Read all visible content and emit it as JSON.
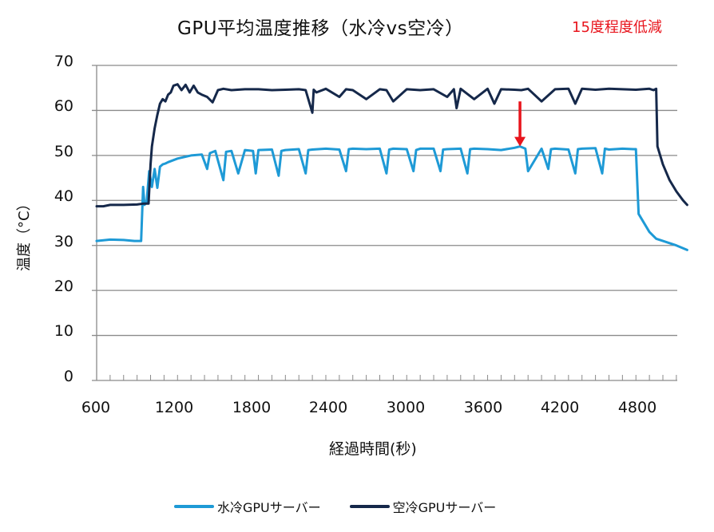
{
  "chart_data": {
    "type": "line",
    "title": "GPU平均温度推移（水冷vs空冷）",
    "annotation": {
      "text": "15度程度低減",
      "color": "#e8141c",
      "arrow": {
        "x": 3740,
        "from_y": 62,
        "to_y": 52
      }
    },
    "xlabel": "経過時間(秒)",
    "ylabel": "温度（°C）",
    "xlim": [
      600,
      5000
    ],
    "ylim": [
      0,
      70
    ],
    "x_ticks": [
      600,
      1200,
      1800,
      2400,
      3000,
      3600,
      4200,
      4800
    ],
    "y_ticks": [
      0,
      10,
      20,
      30,
      40,
      50,
      60,
      70
    ],
    "grid": {
      "horizontal": true,
      "vertical": false
    },
    "legend_position": "bottom",
    "series": [
      {
        "name": "水冷GPUサーバー",
        "color": "#1e9ad6",
        "x": [
          600,
          700,
          800,
          880,
          930,
          945,
          955,
          970,
          990,
          1010,
          1030,
          1050,
          1070,
          1090,
          1110,
          1130,
          1200,
          1300,
          1380,
          1420,
          1440,
          1480,
          1540,
          1560,
          1600,
          1650,
          1700,
          1760,
          1780,
          1800,
          1900,
          1950,
          1970,
          2000,
          2100,
          2150,
          2170,
          2200,
          2300,
          2400,
          2450,
          2470,
          2500,
          2600,
          2700,
          2750,
          2770,
          2800,
          2900,
          2950,
          2970,
          3000,
          3100,
          3150,
          3170,
          3200,
          3300,
          3350,
          3370,
          3400,
          3500,
          3600,
          3700,
          3740,
          3780,
          3800,
          3900,
          3950,
          3970,
          4000,
          4100,
          4150,
          4170,
          4200,
          4300,
          4350,
          4370,
          4400,
          4500,
          4580,
          4600,
          4620,
          4700,
          4750,
          4800,
          4900,
          4980
        ],
        "values": [
          31,
          31.3,
          31.2,
          31,
          31,
          43,
          39,
          39.5,
          46.5,
          43,
          47,
          42.8,
          47.5,
          48,
          48.2,
          48.5,
          49.3,
          50,
          50.2,
          47,
          50.5,
          51,
          44.5,
          50.8,
          51,
          46,
          51.2,
          51,
          46,
          51.2,
          51.3,
          45.5,
          51,
          51.2,
          51.4,
          46,
          51.2,
          51.3,
          51.5,
          51.3,
          46.5,
          51.4,
          51.5,
          51.4,
          51.5,
          46,
          51.3,
          51.5,
          51.4,
          46.5,
          51.2,
          51.5,
          51.5,
          46.5,
          51.3,
          51.4,
          51.5,
          46,
          51.4,
          51.5,
          51.4,
          51.2,
          51.7,
          52,
          51.5,
          46.5,
          51.5,
          47,
          51.4,
          51.5,
          51.3,
          46,
          51.4,
          51.5,
          51.6,
          46,
          51.5,
          51.3,
          51.5,
          51.4,
          51.4,
          37,
          33,
          31.5,
          31,
          30,
          29
        ]
      },
      {
        "name": "空冷GPUサーバー",
        "color": "#15284a",
        "x": [
          600,
          650,
          700,
          800,
          900,
          950,
          985,
          1000,
          1010,
          1030,
          1050,
          1070,
          1090,
          1110,
          1130,
          1150,
          1170,
          1200,
          1230,
          1260,
          1290,
          1320,
          1350,
          1380,
          1420,
          1460,
          1500,
          1540,
          1600,
          1700,
          1800,
          1900,
          2000,
          2100,
          2150,
          2200,
          2210,
          2230,
          2300,
          2400,
          2450,
          2500,
          2600,
          2700,
          2750,
          2800,
          2900,
          3000,
          3100,
          3200,
          3250,
          3270,
          3300,
          3400,
          3500,
          3550,
          3600,
          3700,
          3750,
          3800,
          3900,
          4000,
          4100,
          4150,
          4200,
          4300,
          4400,
          4500,
          4600,
          4700,
          4730,
          4750,
          4760,
          4800,
          4850,
          4900,
          4950,
          4980
        ],
        "values": [
          38.7,
          38.7,
          39,
          39,
          39.1,
          39.3,
          39.3,
          48,
          52,
          56,
          59,
          61.5,
          62.5,
          62,
          63.5,
          64,
          65.5,
          65.8,
          64.5,
          65.7,
          64,
          65.5,
          64,
          63.5,
          63,
          61.8,
          64.5,
          64.8,
          64.5,
          64.7,
          64.7,
          64.5,
          64.6,
          64.7,
          64.5,
          59.5,
          64.6,
          64,
          64.8,
          63,
          64.7,
          64.5,
          62.5,
          64.7,
          64.5,
          62,
          64.7,
          64.5,
          64.7,
          63,
          64.7,
          60.5,
          64.8,
          62.5,
          64.8,
          61.5,
          64.7,
          64.6,
          64.5,
          64.8,
          62,
          64.7,
          64.8,
          61.5,
          64.8,
          64.6,
          64.8,
          64.7,
          64.6,
          64.8,
          64.5,
          64.8,
          52,
          48,
          44.5,
          42,
          40,
          39
        ]
      }
    ]
  },
  "legend": {
    "items": [
      {
        "label": "水冷GPUサーバー",
        "color": "#1e9ad6"
      },
      {
        "label": "空冷GPUサーバー",
        "color": "#15284a"
      }
    ]
  },
  "axes": {
    "y_tick_labels": [
      "70",
      "60",
      "50",
      "40",
      "30",
      "20",
      "10",
      "0"
    ],
    "x_tick_labels": [
      "600",
      "1200",
      "1800",
      "2400",
      "3000",
      "3600",
      "4200",
      "4800"
    ]
  }
}
